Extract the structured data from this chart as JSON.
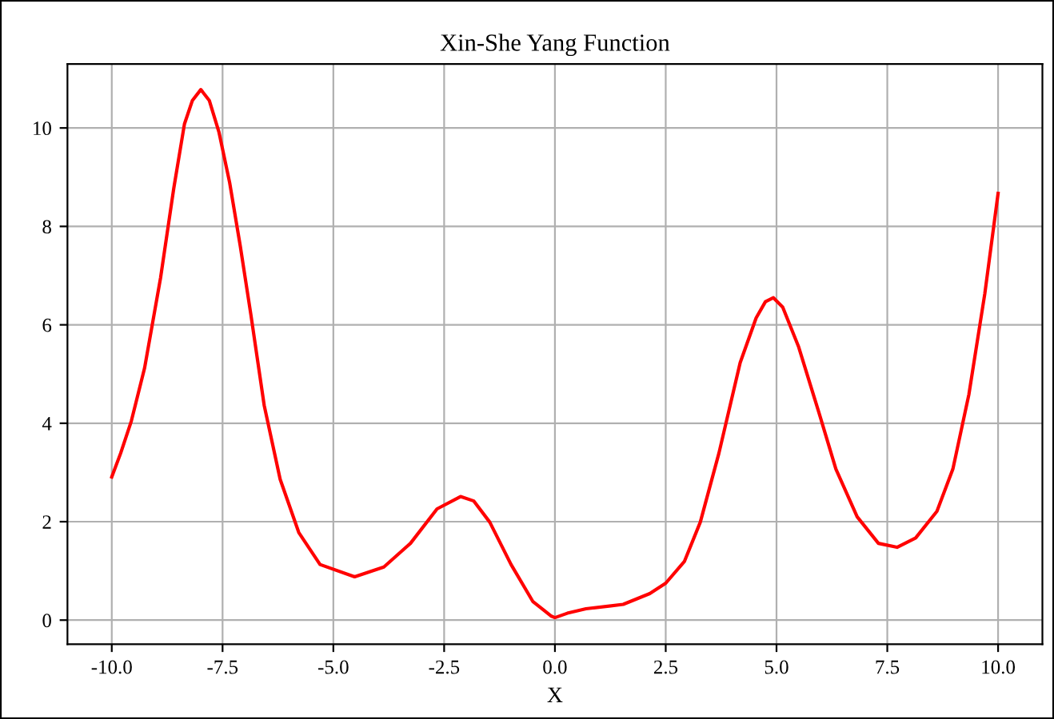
{
  "chart_data": {
    "type": "line",
    "title": "Xin-She Yang Function",
    "xlabel": "X",
    "x": [
      -10,
      -9.8,
      -9.56,
      -9.26,
      -8.9,
      -8.6,
      -8.36,
      -8.18,
      -7.99,
      -7.8,
      -7.58,
      -7.34,
      -7.1,
      -6.86,
      -6.56,
      -6.2,
      -5.78,
      -5.3,
      -4.52,
      -3.86,
      -3.26,
      -2.66,
      -2.13,
      -1.83,
      -1.47,
      -0.99,
      -0.5,
      -0.08,
      0,
      0.28,
      0.7,
      1.54,
      2.14,
      2.5,
      2.92,
      3.28,
      3.7,
      4.18,
      4.54,
      4.75,
      4.93,
      5.14,
      5.5,
      5.98,
      6.34,
      6.82,
      7.3,
      7.72,
      8.14,
      8.62,
      8.98,
      9.34,
      9.7,
      10
    ],
    "series": [
      {
        "color": "#ff0000",
        "values": [
          2.91,
          3.39,
          4.04,
          5.12,
          6.95,
          8.78,
          10.08,
          10.56,
          10.78,
          10.56,
          9.91,
          8.89,
          7.6,
          6.2,
          4.36,
          2.86,
          1.78,
          1.13,
          0.88,
          1.08,
          1.56,
          2.26,
          2.51,
          2.42,
          1.99,
          1.13,
          0.38,
          0.08,
          0.05,
          0.14,
          0.23,
          0.32,
          0.54,
          0.75,
          1.19,
          1.99,
          3.39,
          5.23,
          6.14,
          6.47,
          6.55,
          6.36,
          5.55,
          4.15,
          3.07,
          2.1,
          1.56,
          1.48,
          1.67,
          2.21,
          3.07,
          4.58,
          6.63,
          8.67
        ]
      }
    ],
    "xlim": [
      -11,
      11
    ],
    "ylim": [
      -0.49,
      11.3
    ],
    "xticks": [
      {
        "value": -10,
        "label": "-10.0"
      },
      {
        "value": -7.5,
        "label": "-7.5"
      },
      {
        "value": -5,
        "label": "-5.0"
      },
      {
        "value": -2.5,
        "label": "-2.5"
      },
      {
        "value": 0,
        "label": "0.0"
      },
      {
        "value": 2.5,
        "label": "2.5"
      },
      {
        "value": 5,
        "label": "5.0"
      },
      {
        "value": 7.5,
        "label": "7.5"
      },
      {
        "value": 10,
        "label": "10.0"
      }
    ],
    "yticks": [
      0,
      2,
      4,
      6,
      8,
      10
    ],
    "grid": true,
    "line_style": "solid"
  }
}
